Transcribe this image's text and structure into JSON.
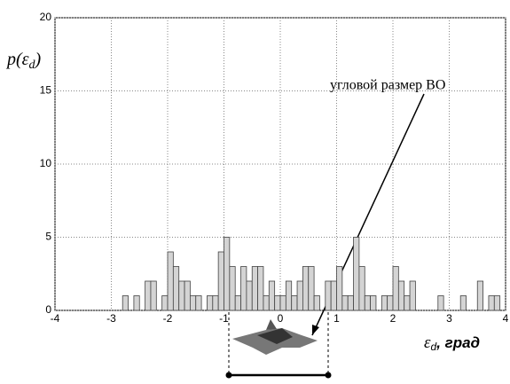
{
  "chart_data": {
    "type": "histogram",
    "ylabel_parts": [
      "p(ε",
      "d",
      ")"
    ],
    "xlabel_parts": [
      "ε",
      "d",
      ", град"
    ],
    "annotation": "угловой размер ВО",
    "bins": [
      -2.8,
      -2.7,
      -2.6,
      -2.5,
      -2.4,
      -2.3,
      -2.2,
      -2.1,
      -2.0,
      -1.9,
      -1.8,
      -1.7,
      -1.6,
      -1.5,
      -1.4,
      -1.3,
      -1.2,
      -1.1,
      -1.0,
      -0.9,
      -0.8,
      -0.7,
      -0.6,
      -0.5,
      -0.4,
      -0.3,
      -0.2,
      -0.1,
      0.0,
      0.1,
      0.2,
      0.3,
      0.4,
      0.5,
      0.6,
      0.7,
      0.8,
      0.9,
      1.0,
      1.1,
      1.2,
      1.3,
      1.4,
      1.5,
      1.6,
      1.7,
      1.8,
      1.9,
      2.0,
      2.1,
      2.2,
      2.3,
      2.4,
      2.5,
      2.6,
      2.7,
      2.8,
      2.9,
      3.0,
      3.1,
      3.2,
      3.3,
      3.4,
      3.5,
      3.6,
      3.7,
      3.8,
      3.9
    ],
    "values": [
      1,
      0,
      1,
      0,
      2,
      2,
      0,
      1,
      4,
      3,
      2,
      2,
      1,
      1,
      0,
      1,
      1,
      4,
      5,
      3,
      1,
      3,
      2,
      3,
      3,
      1,
      2,
      1,
      1,
      2,
      1,
      2,
      3,
      3,
      1,
      0,
      2,
      2,
      3,
      1,
      1,
      5,
      3,
      1,
      1,
      0,
      1,
      1,
      3,
      2,
      1,
      2,
      0,
      0,
      0,
      0,
      1,
      0,
      0,
      0,
      1,
      0,
      0,
      2,
      0,
      1,
      1
    ],
    "color": "#d4d4d4",
    "xlim": [
      -4,
      4
    ],
    "ylim": [
      0,
      20
    ],
    "xticks": [
      -4,
      -3,
      -2,
      -1,
      0,
      1,
      2,
      3,
      4
    ],
    "yticks": [
      0,
      5,
      10,
      15,
      20
    ],
    "grid": true
  }
}
